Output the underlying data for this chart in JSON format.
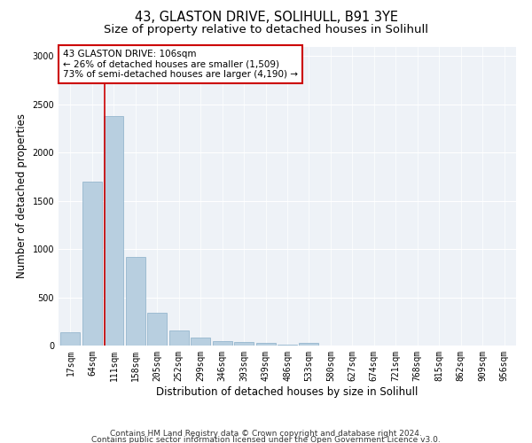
{
  "title": "43, GLASTON DRIVE, SOLIHULL, B91 3YE",
  "subtitle": "Size of property relative to detached houses in Solihull",
  "xlabel": "Distribution of detached houses by size in Solihull",
  "ylabel": "Number of detached properties",
  "footnote1": "Contains HM Land Registry data © Crown copyright and database right 2024.",
  "footnote2": "Contains public sector information licensed under the Open Government Licence v3.0.",
  "bar_labels": [
    "17sqm",
    "64sqm",
    "111sqm",
    "158sqm",
    "205sqm",
    "252sqm",
    "299sqm",
    "346sqm",
    "393sqm",
    "439sqm",
    "486sqm",
    "533sqm",
    "580sqm",
    "627sqm",
    "674sqm",
    "721sqm",
    "768sqm",
    "815sqm",
    "862sqm",
    "909sqm",
    "956sqm"
  ],
  "bar_values": [
    140,
    1700,
    2380,
    920,
    340,
    160,
    85,
    50,
    35,
    25,
    5,
    25,
    0,
    0,
    0,
    0,
    0,
    0,
    0,
    0,
    0
  ],
  "bar_color": "#b8cfe0",
  "bar_edge_color": "#8aafc8",
  "annotation_box_text": "43 GLASTON DRIVE: 106sqm\n← 26% of detached houses are smaller (1,509)\n73% of semi-detached houses are larger (4,190) →",
  "vline_color": "#cc0000",
  "vline_pos": 1.57,
  "ylim": [
    0,
    3100
  ],
  "yticks": [
    0,
    500,
    1000,
    1500,
    2000,
    2500,
    3000
  ],
  "background_color": "#eef2f7",
  "title_fontsize": 10.5,
  "subtitle_fontsize": 9.5,
  "xlabel_fontsize": 8.5,
  "ylabel_fontsize": 8.5,
  "tick_fontsize": 7,
  "annot_fontsize": 7.5
}
